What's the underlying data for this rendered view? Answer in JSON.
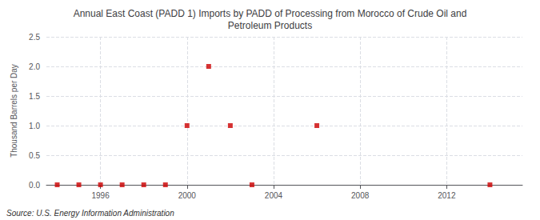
{
  "chart_data": {
    "type": "scatter",
    "title": "Annual East Coast (PADD 1) Imports by PADD of Processing from Morocco of Crude Oil and\nPetroleum Products",
    "ylabel": "Thousand Barrels per Day",
    "source": "Source: U.S. Energy Information Administration",
    "x": [
      1994,
      1995,
      1996,
      1997,
      1998,
      1999,
      2000,
      2001,
      2002,
      2003,
      2006,
      2014
    ],
    "values": [
      0,
      0,
      0,
      0,
      0,
      0,
      1.0,
      2.0,
      1.0,
      0,
      1.0,
      0
    ],
    "color": "#cc0000",
    "marker": "square",
    "xlim": [
      1993.5,
      2015.5
    ],
    "xticks": [
      1996,
      2000,
      2004,
      2008,
      2012
    ],
    "ylim": [
      0.0,
      2.5
    ],
    "yticks": [
      {
        "value": 0.0,
        "label": "0.0"
      },
      0.5,
      {
        "value": 1.0,
        "label": "1.0"
      },
      1.5,
      {
        "value": 2.0,
        "label": "2.0"
      },
      2.5
    ],
    "grid": true
  }
}
